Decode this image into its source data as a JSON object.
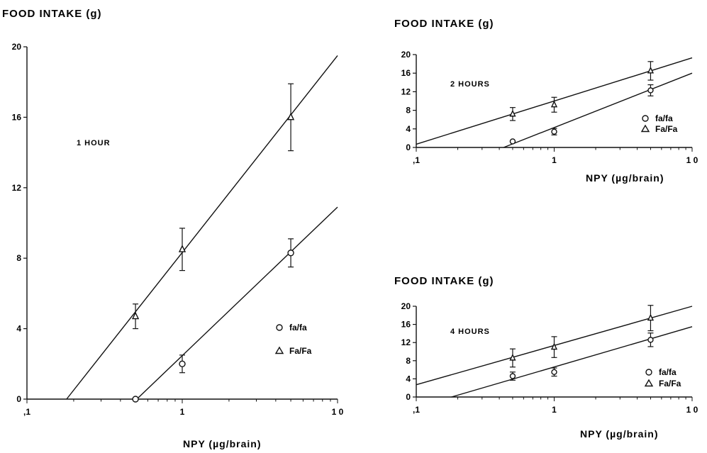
{
  "chart_data": [
    {
      "type": "scatter",
      "title": "",
      "ylabel": "FOOD INTAKE (g)",
      "xlabel": "NPY (µg/brain)",
      "panel_label": "1 HOUR",
      "x_scale": "log",
      "xlim": [
        0.1,
        10
      ],
      "ylim": [
        0,
        20
      ],
      "x_ticks": [
        0.1,
        1,
        10
      ],
      "x_tick_labels": [
        ",1",
        "1",
        "1 0"
      ],
      "y_ticks": [
        0,
        4,
        8,
        12,
        16,
        20
      ],
      "y_tick_labels": [
        "0",
        "4",
        "8",
        "12",
        "16",
        "20"
      ],
      "legend_placement": "lower-right",
      "series": [
        {
          "name": "fa/fa",
          "marker": "circle",
          "x": [
            0.5,
            1,
            5
          ],
          "y": [
            0.0,
            2.0,
            8.3
          ],
          "err": [
            0,
            0.5,
            0.8
          ],
          "fit_line": [
            [
              0.51,
              0
            ],
            [
              10,
              10.9
            ]
          ]
        },
        {
          "name": "Fa/Fa",
          "marker": "triangle",
          "x": [
            0.5,
            1,
            5
          ],
          "y": [
            4.7,
            8.5,
            16.0
          ],
          "err": [
            0.7,
            1.2,
            1.9
          ],
          "fit_line": [
            [
              0.18,
              0
            ],
            [
              10,
              19.5
            ]
          ]
        }
      ]
    },
    {
      "type": "scatter",
      "title": "",
      "ylabel": "FOOD INTAKE (g)",
      "xlabel": "NPY (µg/brain)",
      "panel_label": "2 HOURS",
      "x_scale": "log",
      "xlim": [
        0.1,
        10
      ],
      "ylim": [
        0,
        20
      ],
      "x_ticks": [
        0.1,
        1,
        10
      ],
      "x_tick_labels": [
        ",1",
        "1",
        "1 0"
      ],
      "y_ticks": [
        0,
        4,
        8,
        12,
        16,
        20
      ],
      "y_tick_labels": [
        "0",
        "4",
        "8",
        "12",
        "16",
        "20"
      ],
      "legend_placement": "right",
      "series": [
        {
          "name": "fa/fa",
          "marker": "circle",
          "x": [
            0.5,
            1,
            5
          ],
          "y": [
            1.3,
            3.4,
            12.3
          ],
          "err": [
            0,
            0.7,
            1.2
          ],
          "fit_line": [
            [
              0.43,
              0
            ],
            [
              10,
              16.0
            ]
          ]
        },
        {
          "name": "Fa/Fa",
          "marker": "triangle",
          "x": [
            0.5,
            1,
            5
          ],
          "y": [
            7.2,
            9.2,
            16.5
          ],
          "err": [
            1.4,
            1.6,
            2.0
          ],
          "fit_line": [
            [
              0.1,
              0.7
            ],
            [
              10,
              19.3
            ]
          ]
        }
      ]
    },
    {
      "type": "scatter",
      "title": "",
      "ylabel": "FOOD INTAKE (g)",
      "xlabel": "NPY (µg/brain)",
      "panel_label": "4 HOURS",
      "x_scale": "log",
      "xlim": [
        0.1,
        10
      ],
      "ylim": [
        0,
        20
      ],
      "x_ticks": [
        0.1,
        1,
        10
      ],
      "x_tick_labels": [
        ",1",
        "1",
        "1 0"
      ],
      "y_ticks": [
        0,
        4,
        8,
        12,
        16,
        20
      ],
      "y_tick_labels": [
        "0",
        "4",
        "8",
        "12",
        "16",
        "20"
      ],
      "legend_placement": "lower-right",
      "series": [
        {
          "name": "fa/fa",
          "marker": "circle",
          "x": [
            0.5,
            1,
            5
          ],
          "y": [
            4.6,
            5.5,
            12.6
          ],
          "err": [
            0.9,
            0.9,
            1.5
          ],
          "fit_line": [
            [
              0.18,
              0
            ],
            [
              10,
              15.5
            ]
          ]
        },
        {
          "name": "Fa/Fa",
          "marker": "triangle",
          "x": [
            0.5,
            1,
            5
          ],
          "y": [
            8.6,
            11.0,
            17.4
          ],
          "err": [
            2.0,
            2.3,
            2.8
          ],
          "fit_line": [
            [
              0.1,
              2.7
            ],
            [
              10,
              20.0
            ]
          ]
        }
      ]
    }
  ]
}
